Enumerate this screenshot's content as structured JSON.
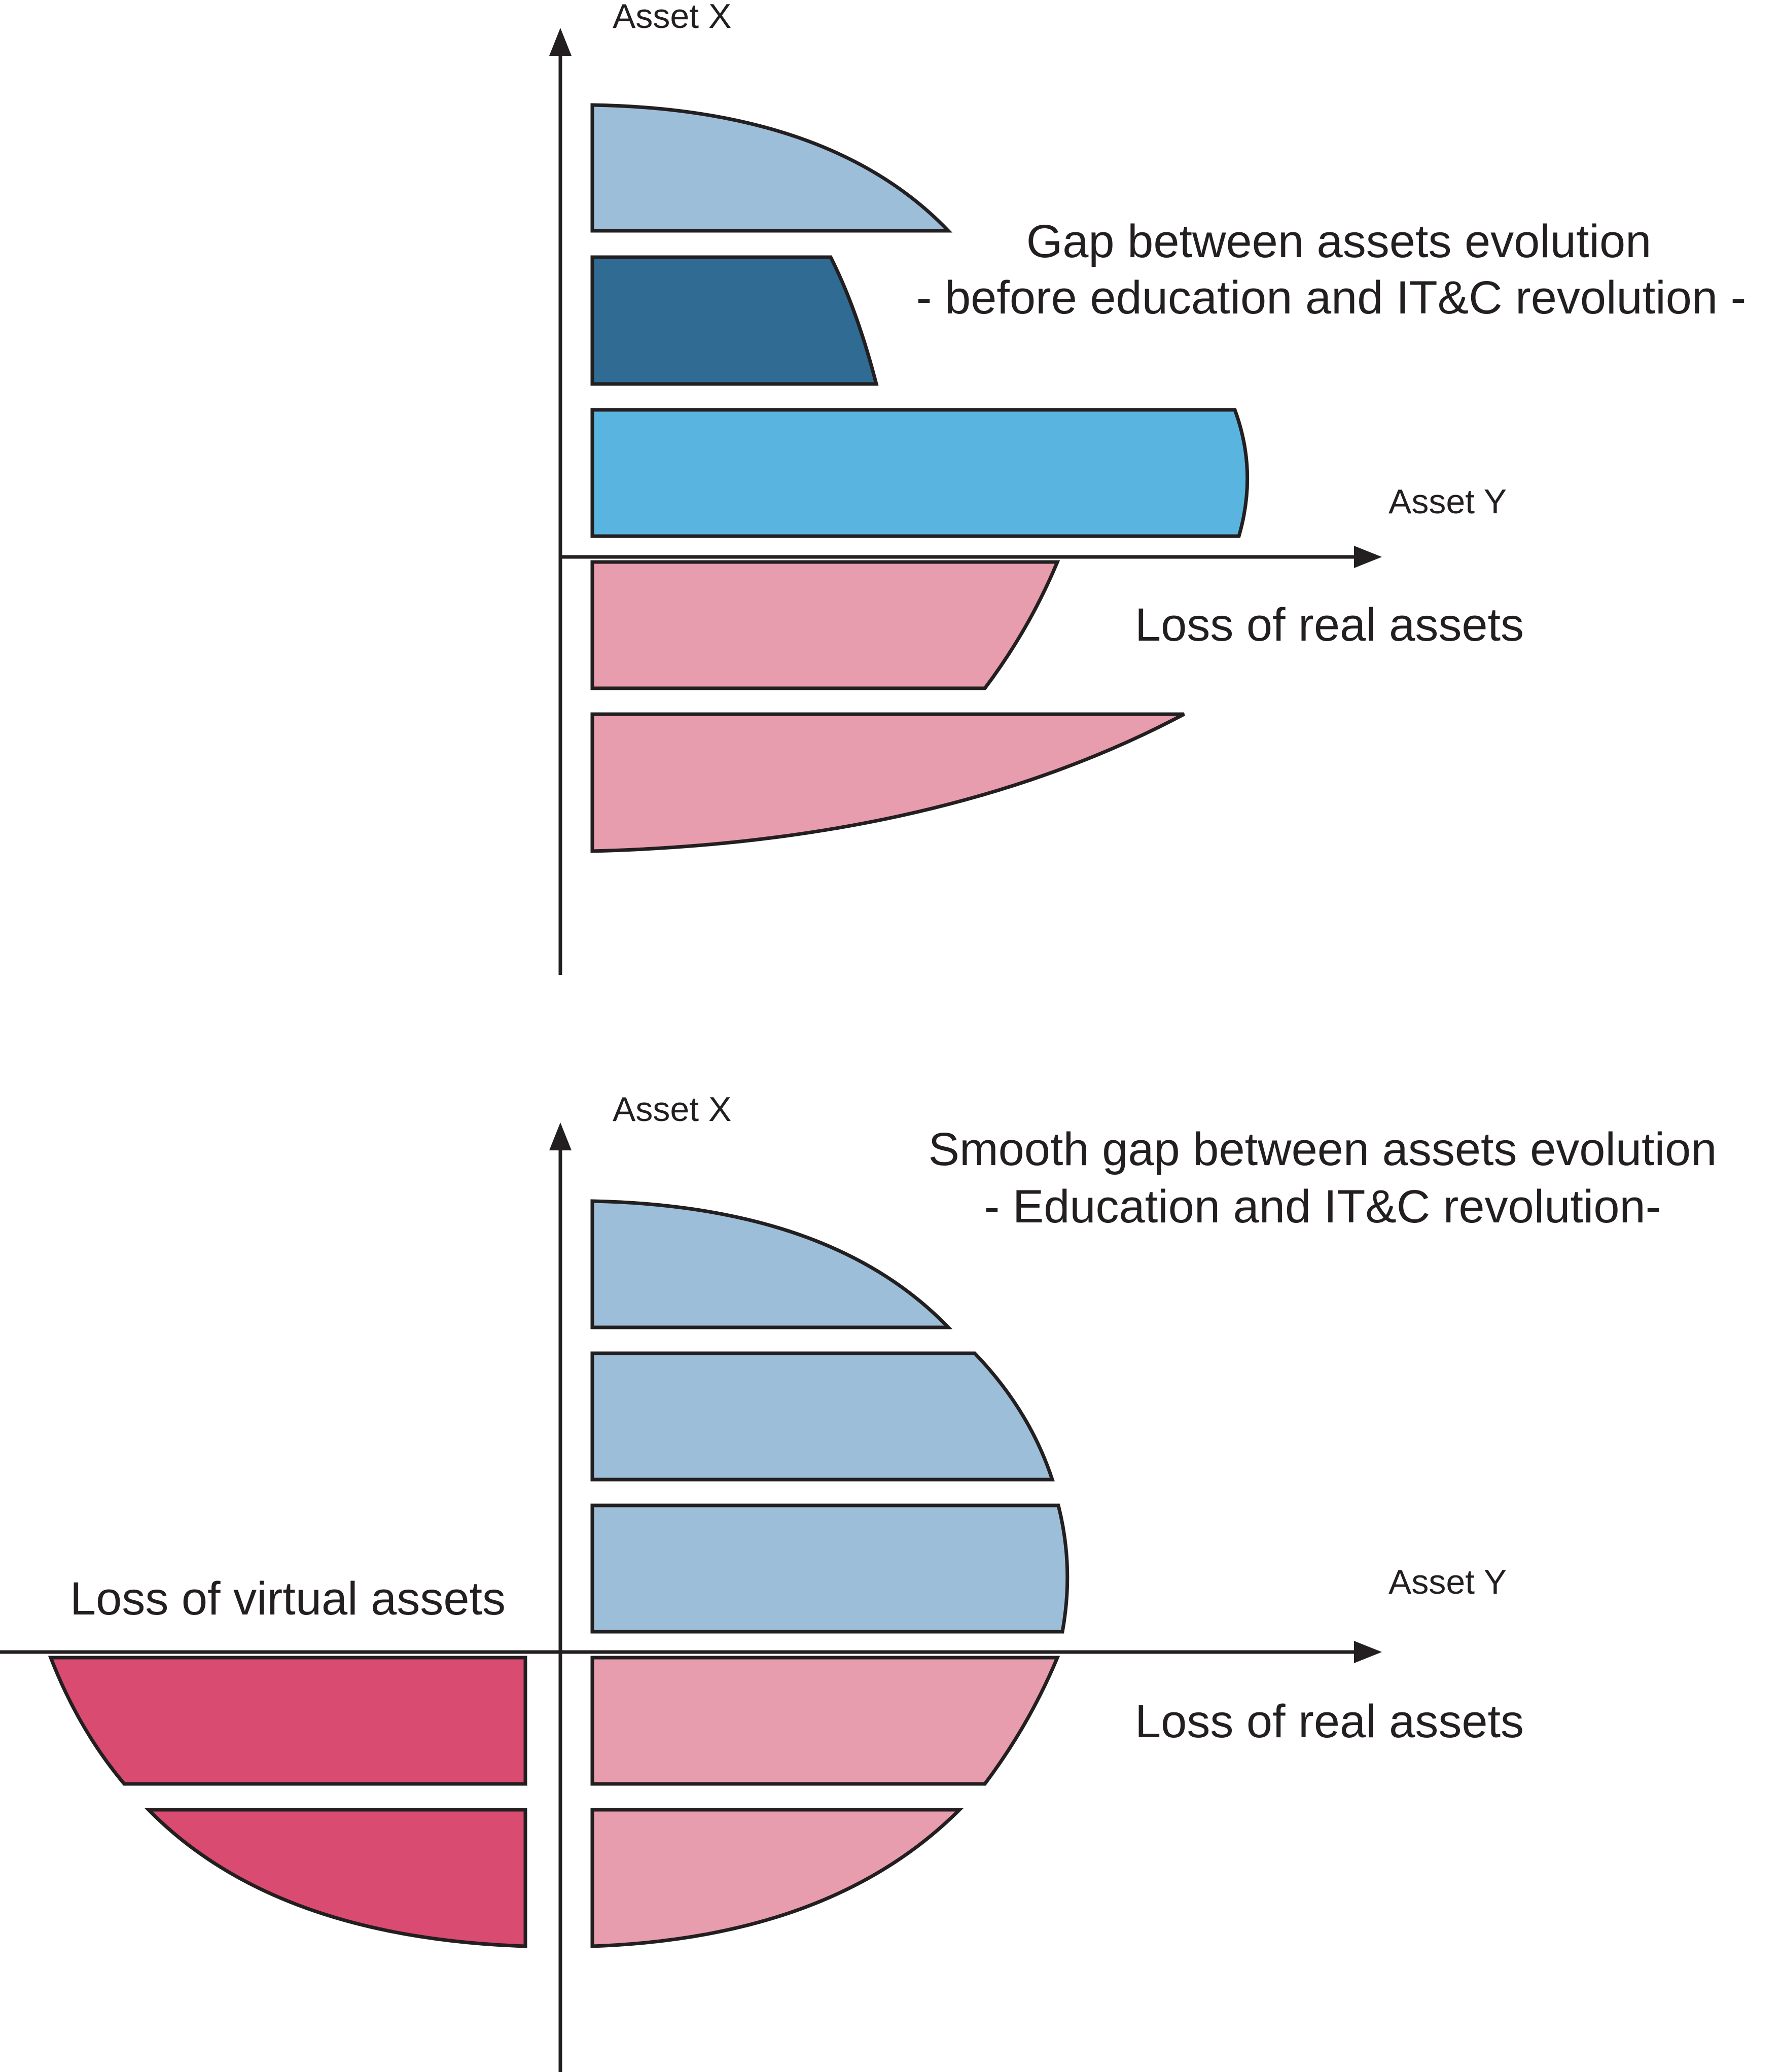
{
  "colors": {
    "light_blue": "#9dbed8",
    "dark_blue": "#2f6b93",
    "bright_blue": "#5ab4e0",
    "light_pink": "#e79dad",
    "deep_pink": "#d94b70",
    "outline": "#231f20"
  },
  "top_panel": {
    "axis_x_label": "Asset X",
    "axis_y_label": "Asset Y",
    "title_line1": "Gap between assets evolution",
    "title_line2": "- before education and IT&C revolution -",
    "below_axis_label": "Loss of real assets"
  },
  "bottom_panel": {
    "axis_x_label": "Asset X",
    "axis_y_label": "Asset Y",
    "title_line1": "Smooth gap between assets evolution",
    "title_line2": "- Education and IT&C revolution-",
    "left_label": "Loss of virtual assets",
    "below_axis_label": "Loss of real assets"
  }
}
